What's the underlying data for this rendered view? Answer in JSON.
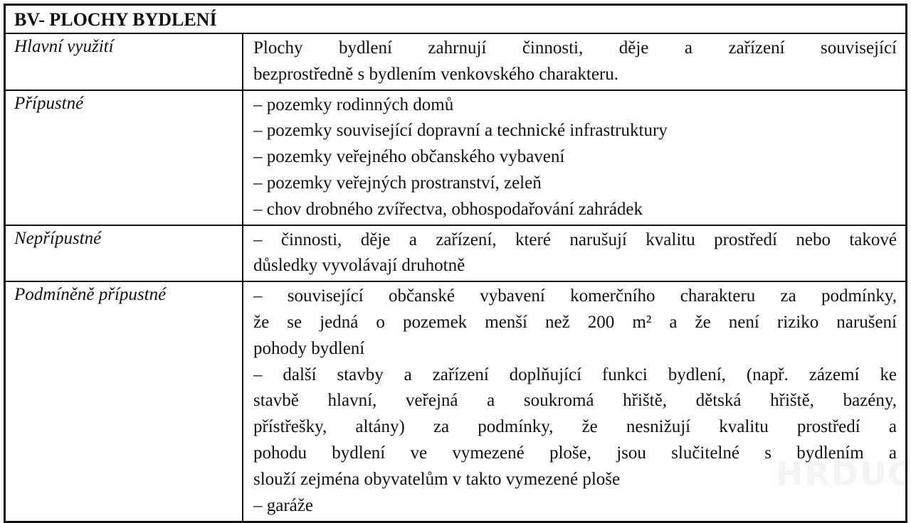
{
  "title": "BV- PLOCHY BYDLENÍ",
  "rows": [
    {
      "label": "Hlavní využití",
      "lines": [
        {
          "t": "Plochy bydlení zahrnují činnosti, děje a zařízení související",
          "j": true
        },
        {
          "t": "bezprostředně s bydlením venkovského charakteru.",
          "j": false
        }
      ]
    },
    {
      "label": "Přípustné",
      "lines": [
        {
          "t": "– pozemky rodinných domů",
          "j": false
        },
        {
          "t": "– pozemky související dopravní a technické infrastruktury",
          "j": false
        },
        {
          "t": "– pozemky veřejného občanského vybavení",
          "j": false
        },
        {
          "t": "– pozemky veřejných prostranství, zeleň",
          "j": false
        },
        {
          "t": "– chov drobného zvířectva, obhospodařování zahrádek",
          "j": false
        }
      ]
    },
    {
      "label": "Nepřípustné",
      "lines": [
        {
          "t": "– činnosti, děje a zařízení, které narušují kvalitu prostředí nebo takové",
          "j": true
        },
        {
          "t": "důsledky vyvolávají druhotně",
          "j": false
        }
      ]
    },
    {
      "label": "Podmíněně přípustné",
      "lines": [
        {
          "t": "– související občanské vybavení komerčního charakteru za podmínky,",
          "j": true
        },
        {
          "t": "že se jedná o pozemek menší než 200 m² a že není riziko narušení",
          "j": true
        },
        {
          "t": "pohody bydlení",
          "j": false
        },
        {
          "t": "– další stavby a zařízení doplňující funkci bydlení, (např. zázemí ke",
          "j": true
        },
        {
          "t": "stavbě hlavní, veřejná a soukromá hřiště, dětská hřiště, bazény,",
          "j": true
        },
        {
          "t": "přístřešky, altány) za podmínky, že nesnižují kvalitu prostředí a",
          "j": true
        },
        {
          "t": "pohodu bydlení ve vymezené ploše, jsou slučitelné s bydlením a",
          "j": true
        },
        {
          "t": "slouží zejména obyvatelům v takto vymezené ploše",
          "j": false
        },
        {
          "t": "– garáže",
          "j": false
        }
      ]
    }
  ],
  "watermark": "HRDUCKA"
}
